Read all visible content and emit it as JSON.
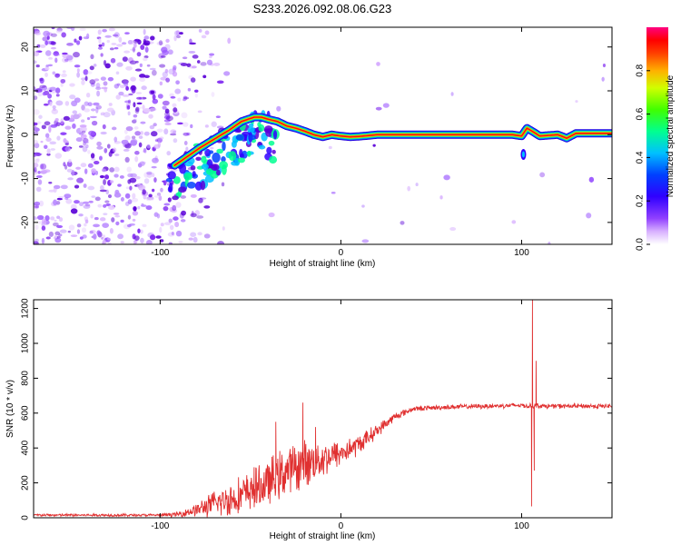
{
  "page_title": "S233.2026.092.08.06.G23",
  "chart_data": [
    {
      "type": "heatmap",
      "name": "spectrogram",
      "title": "S233.2026.092.08.06.G23",
      "xlabel": "Height of straight line (km)",
      "ylabel": "Frequency (Hz)",
      "xlim": [
        -170,
        150
      ],
      "ylim": [
        -25,
        24.5
      ],
      "xticks": [
        -100,
        0,
        100
      ],
      "yticks": [
        -20,
        -10,
        0,
        10,
        20
      ],
      "colorbar": {
        "label": "Normalized spectral amplitude",
        "range": [
          0.0,
          1.0
        ],
        "ticks": [
          0.0,
          0.2,
          0.4,
          0.6,
          0.8
        ]
      },
      "ridge": {
        "x": [
          -92,
          -85,
          -78,
          -70,
          -62,
          -55,
          -48,
          -44,
          -40,
          -35,
          -30,
          -25,
          -20,
          -15,
          -10,
          -5,
          0,
          5,
          10,
          15,
          20,
          40,
          60,
          80,
          95,
          100,
          103,
          107,
          110,
          120,
          125,
          130,
          150
        ],
        "y": [
          -7,
          -5,
          -3,
          -1,
          1,
          3,
          4,
          4,
          3.5,
          3,
          2,
          1.5,
          0.8,
          0,
          -0.5,
          0,
          -0.3,
          -0.5,
          -0.4,
          -0.2,
          0,
          0,
          0,
          0,
          0,
          -0.3,
          1.5,
          0.5,
          -0.3,
          0,
          -0.8,
          0.3,
          0.3
        ]
      }
    },
    {
      "type": "line",
      "name": "snr",
      "xlabel": "Height of straight line (km)",
      "ylabel": "SNR (10 * v/v)",
      "xlim": [
        -170,
        150
      ],
      "ylim": [
        0,
        1250
      ],
      "xticks": [
        -100,
        0,
        100
      ],
      "yticks": [
        0,
        200,
        400,
        600,
        800,
        1000,
        1200
      ],
      "color": "#e03030",
      "envelope": {
        "x": [
          -170,
          -100,
          -90,
          -80,
          -70,
          -60,
          -50,
          -40,
          -30,
          -20,
          -10,
          0,
          10,
          20,
          30,
          40,
          60,
          80,
          100,
          104,
          106,
          108,
          112,
          130,
          150
        ],
        "y": [
          15,
          15,
          20,
          45,
          80,
          110,
          150,
          200,
          270,
          310,
          340,
          370,
          420,
          500,
          580,
          625,
          635,
          640,
          645,
          640,
          640,
          645,
          640,
          640,
          640
        ]
      },
      "noise_amplitude": {
        "x": [
          -170,
          -100,
          -90,
          -80,
          -70,
          -60,
          -50,
          -40,
          -30,
          -20,
          -10,
          0,
          10,
          20,
          30,
          40,
          150
        ],
        "y": [
          8,
          8,
          15,
          40,
          80,
          110,
          120,
          140,
          150,
          140,
          110,
          80,
          60,
          40,
          25,
          15,
          15
        ]
      },
      "spikes": [
        {
          "x": -48,
          "y": 290
        },
        {
          "x": -36,
          "y": 550
        },
        {
          "x": -21,
          "y": 660
        },
        {
          "x": -14,
          "y": 520
        },
        {
          "x": 105.5,
          "y": 65
        },
        {
          "x": 106,
          "y": 1250
        },
        {
          "x": 107,
          "y": 270
        },
        {
          "x": 108,
          "y": 900
        }
      ]
    }
  ],
  "colors": {
    "line": "#e03030",
    "background": "#ffffff",
    "colormap": [
      "#ffffff",
      "#c080ff",
      "#6000e0",
      "#0000ff",
      "#00c0ff",
      "#00ff80",
      "#80ff00",
      "#ffff00",
      "#ff8000",
      "#ff0000",
      "#ff0080"
    ]
  }
}
